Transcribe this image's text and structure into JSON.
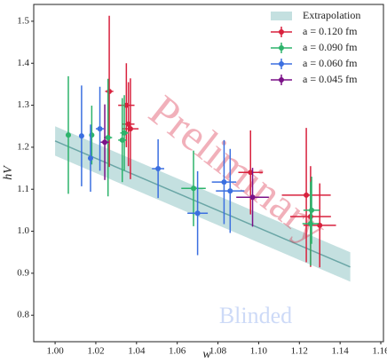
{
  "chart_data": {
    "type": "errorbar-scatter",
    "xlabel": "w",
    "ylabel": "hV",
    "xlim": [
      0.9895,
      1.1613
    ],
    "ylim": [
      0.737,
      1.54
    ],
    "xticks": [
      {
        "value": 1.0,
        "label": "1.00"
      },
      {
        "value": 1.02,
        "label": "1.02"
      },
      {
        "value": 1.04,
        "label": "1.04"
      },
      {
        "value": 1.06,
        "label": "1.06"
      },
      {
        "value": 1.08,
        "label": "1.08"
      },
      {
        "value": 1.1,
        "label": "1.10"
      },
      {
        "value": 1.12,
        "label": "1.12"
      },
      {
        "value": 1.14,
        "label": "1.14"
      },
      {
        "value": 1.16,
        "label": "1.16"
      }
    ],
    "yticks": [
      0.8,
      0.9,
      {
        "value": 1.0,
        "label": "1.0"
      },
      1.1,
      1.2,
      1.3,
      1.4,
      1.5
    ],
    "grid": false,
    "legend": "upper right",
    "band": {
      "name": "Extrapolation",
      "color": "#9ccbcb",
      "line_color": "#6aa6a6",
      "x": [
        1.0,
        1.145
      ],
      "values": [
        1.215,
        0.915
      ],
      "lower": [
        1.18,
        0.88
      ],
      "upper": [
        1.25,
        0.95
      ]
    },
    "series": [
      {
        "name": "a = 0.120 fm",
        "color": "#d8213d",
        "x": [
          1.0266,
          1.035,
          1.036,
          1.037,
          1.096,
          1.1234,
          1.1255,
          1.13
        ],
        "values": [
          1.333,
          1.3,
          1.255,
          1.244,
          1.14,
          1.086,
          1.035,
          1.014
        ],
        "xerr": [
          0.002,
          0.004,
          0.003,
          0.004,
          0.006,
          0.012,
          0.01,
          0.008
        ],
        "yerr": [
          0.18,
          0.1,
          0.1,
          0.12,
          0.1,
          0.16,
          0.12,
          0.1
        ]
      },
      {
        "name": "a = 0.090 fm",
        "color": "#2db36b",
        "x": [
          1.0065,
          1.018,
          1.026,
          1.033,
          1.034,
          1.068,
          1.1255,
          1.126
        ],
        "values": [
          1.229,
          1.229,
          1.223,
          1.217,
          1.234,
          1.102,
          1.018,
          1.05
        ],
        "xerr": [
          0.001,
          0.001,
          0.002,
          0.002,
          0.002,
          0.006,
          0.004,
          0.004
        ],
        "yerr": [
          0.14,
          0.07,
          0.14,
          0.1,
          0.09,
          0.09,
          0.1,
          0.08
        ]
      },
      {
        "name": "a = 0.060 fm",
        "color": "#3b6fe0",
        "x": [
          1.013,
          1.0174,
          1.022,
          1.0506,
          1.07,
          1.083,
          1.086
        ],
        "values": [
          1.227,
          1.174,
          1.244,
          1.149,
          1.043,
          1.117,
          1.096
        ],
        "xerr": [
          0.001,
          0.001,
          0.002,
          0.003,
          0.005,
          0.006,
          0.007
        ],
        "yerr": [
          0.12,
          0.08,
          0.1,
          0.07,
          0.1,
          0.1,
          0.1
        ]
      },
      {
        "name": "a = 0.045 fm",
        "color": "#7a1187",
        "x": [
          1.0244,
          1.097
        ],
        "values": [
          1.212,
          1.081
        ],
        "xerr": [
          0.002,
          0.008
        ],
        "yerr": [
          0.09,
          0.07
        ]
      }
    ],
    "annotations": [
      "Preliminary",
      "Blinded"
    ]
  }
}
